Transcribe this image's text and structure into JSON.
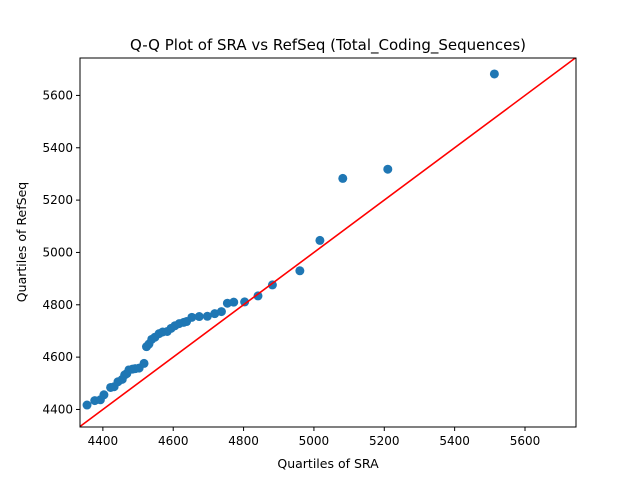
{
  "chart_data": {
    "type": "scatter",
    "title": "Q-Q Plot of SRA vs RefSeq (Total_Coding_Sequences)",
    "xlabel": "Quartiles of SRA",
    "ylabel": "Quartiles of RefSeq",
    "xlim": [
      4335,
      5745
    ],
    "ylim": [
      4333,
      5743
    ],
    "xticks": [
      4400,
      4600,
      4800,
      5000,
      5200,
      5400,
      5600
    ],
    "yticks": [
      4400,
      4600,
      4800,
      5000,
      5200,
      5400,
      5600
    ],
    "grid": false,
    "point_color": "#1f77b4",
    "line_color": "#ff0000",
    "reference_line": "y = x",
    "points": [
      [
        4355,
        4417
      ],
      [
        4377,
        4434
      ],
      [
        4393,
        4437
      ],
      [
        4403,
        4456
      ],
      [
        4422,
        4484
      ],
      [
        4432,
        4487
      ],
      [
        4443,
        4506
      ],
      [
        4455,
        4515
      ],
      [
        4462,
        4532
      ],
      [
        4468,
        4537
      ],
      [
        4474,
        4551
      ],
      [
        4484,
        4554
      ],
      [
        4492,
        4556
      ],
      [
        4503,
        4558
      ],
      [
        4517,
        4576
      ],
      [
        4524,
        4640
      ],
      [
        4531,
        4650
      ],
      [
        4539,
        4668
      ],
      [
        4548,
        4676
      ],
      [
        4560,
        4690
      ],
      [
        4570,
        4696
      ],
      [
        4583,
        4698
      ],
      [
        4594,
        4710
      ],
      [
        4605,
        4720
      ],
      [
        4617,
        4728
      ],
      [
        4630,
        4733
      ],
      [
        4638,
        4736
      ],
      [
        4653,
        4752
      ],
      [
        4674,
        4755
      ],
      [
        4697,
        4756
      ],
      [
        4718,
        4766
      ],
      [
        4737,
        4774
      ],
      [
        4754,
        4806
      ],
      [
        4772,
        4810
      ],
      [
        4803,
        4811
      ],
      [
        4841,
        4834
      ],
      [
        4882,
        4876
      ],
      [
        4960,
        4930
      ],
      [
        5017,
        5046
      ],
      [
        5082,
        5283
      ],
      [
        5210,
        5318
      ],
      [
        5513,
        5682
      ]
    ]
  }
}
